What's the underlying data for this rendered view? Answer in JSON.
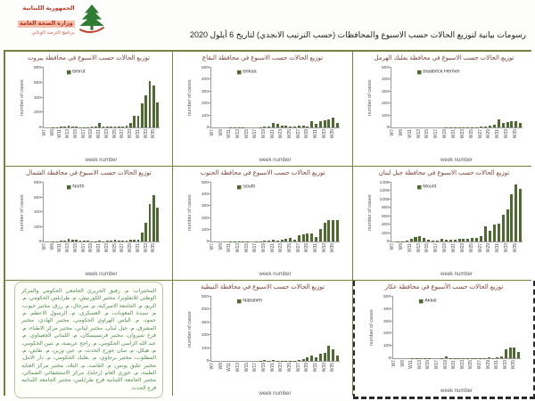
{
  "colors": {
    "bar": "#4d6b2f",
    "grid_border": "#76813e",
    "chart_title": "#7c4236",
    "logo_red": "#c13b2a",
    "note_green": "#4e8a50"
  },
  "header": {
    "logo": {
      "icon": "cedar-tree",
      "line1": "الجمهورية اللبنانية",
      "line2": "وزارة الصحة العامة",
      "line3": "برنامج الترصد الوبائي"
    },
    "title": "رسومات بيانية لتوزيع الحالات حسب الاسبوع  والمحافظات (حسب الترتيب الابجدي) لتاريخ  6 أيلول 2020"
  },
  "axis": {
    "xlabel": "week number",
    "ylabel": "number of cases"
  },
  "labs_note": {
    "text": "المختبرات: م. رفيق الحريري الجامعي الحكومي والمركز الوطني للانفلونزا، مختبر الكورنيش، م. طرابلس الحكومي، م. الريو، م. الجامعة الاميركية، م. سرحال، م. رزق، مختبر حيوب، م. سيدة المعونات، م. العسكري، م. الرسول الاعظم، م. حمود، م. الياس الهراوي الحكومي، مختبر الهادي، مختبر المشرق، م. جبل لبنان، مختبر ايتاني، مختبر مركز الاطباء، م. فرح شيروان، مختبر فرنسيسكان، م. اللبناني الجعيتاوي، م. عبد الله الراسي الحكومي، م. راجح عريضة، م. تنين الحكومي، م. هيكل، م. سان جورج الحدث، م. عين وزين، م. نقاش، م. المطلوب، مختبر برجاوي، م. بعلبك الحكومي، م. دار الامل، مختبر عليق يونس، م. القاصد، م. البلاد، مختبر مركز العناية الطبية، م. خوري العام (زحلة)، مركز الاستشفائي الشمالي، مختبر الجامعة اللبنانية فرع طرابلس، مختبر الجامعة اللبنانية فرع الحدث"
  },
  "chart_data": [
    {
      "type": "bar",
      "title": "توزيع الحالات حسب الاسبوع  في محافظة بيروت",
      "legend": "Beirut",
      "xlabel": "week number",
      "ylabel": "number of cases",
      "ymax": 800,
      "yticks": [
        0,
        200,
        400,
        600,
        800
      ],
      "categories": [
        "W7",
        "W8",
        "W9",
        "W10",
        "W11",
        "W12",
        "W13",
        "W14",
        "W15",
        "W16",
        "W17",
        "W18",
        "W19",
        "W20",
        "W21",
        "W22",
        "W23",
        "W24",
        "W25",
        "W26",
        "W27",
        "W28",
        "W29",
        "W30",
        "W31",
        "W32",
        "W33",
        "W34",
        "W35",
        "W36"
      ],
      "values": [
        0,
        0,
        2,
        3,
        15,
        18,
        20,
        18,
        8,
        4,
        4,
        3,
        14,
        18,
        55,
        14,
        10,
        8,
        14,
        10,
        14,
        20,
        55,
        150,
        160,
        320,
        430,
        620,
        565,
        330
      ]
    },
    {
      "type": "bar",
      "title": "توزيع الحالات حسب الاسبوع  في محافظة البقاع",
      "legend": "Bekaa",
      "xlabel": "week number",
      "ylabel": "number of cases",
      "ymax": 500,
      "yticks": [
        0,
        100,
        200,
        300,
        400,
        500
      ],
      "categories": [
        "W7",
        "W8",
        "W9",
        "W10",
        "W11",
        "W12",
        "W13",
        "W14",
        "W15",
        "W16",
        "W17",
        "W18",
        "W19",
        "W20",
        "W21",
        "W22",
        "W23",
        "W24",
        "W25",
        "W26",
        "W27",
        "W28",
        "W29",
        "W30",
        "W31",
        "W32",
        "W33",
        "W34",
        "W35",
        "W36"
      ],
      "values": [
        0,
        0,
        0,
        0,
        2,
        2,
        3,
        2,
        0,
        0,
        0,
        2,
        10,
        5,
        35,
        30,
        15,
        15,
        5,
        4,
        12,
        12,
        5,
        55,
        30,
        55,
        60,
        65,
        80,
        40
      ]
    },
    {
      "type": "bar",
      "title": "توزيع الحالات حسب الاسبوع  في محافظة بعلبك الهرمل",
      "legend": "Baalbeck Hermel",
      "xlabel": "week number",
      "ylabel": "number of cases",
      "ymax": 500,
      "yticks": [
        0,
        100,
        200,
        300,
        400,
        500
      ],
      "categories": [
        "W7",
        "W8",
        "W9",
        "W10",
        "W11",
        "W12",
        "W13",
        "W14",
        "W15",
        "W16",
        "W17",
        "W18",
        "W19",
        "W20",
        "W21",
        "W22",
        "W23",
        "W24",
        "W25",
        "W26",
        "W27",
        "W28",
        "W29",
        "W30",
        "W31",
        "W32",
        "W33",
        "W34",
        "W35",
        "W36"
      ],
      "values": [
        0,
        0,
        0,
        0,
        0,
        0,
        0,
        0,
        0,
        0,
        0,
        0,
        2,
        2,
        3,
        2,
        2,
        2,
        3,
        3,
        5,
        10,
        15,
        20,
        65,
        35,
        45,
        55,
        55,
        35
      ]
    },
    {
      "type": "bar",
      "title": "توزيع الحالات حسب الاسبوع  في محافظة الشمال",
      "legend": "North",
      "xlabel": "week number",
      "ylabel": "number of cases",
      "ymax": 800,
      "yticks": [
        0,
        200,
        400,
        600,
        800
      ],
      "categories": [
        "W7",
        "W8",
        "W9",
        "W10",
        "W11",
        "W12",
        "W13",
        "W14",
        "W15",
        "W16",
        "W17",
        "W18",
        "W19",
        "W20",
        "W21",
        "W22",
        "W23",
        "W24",
        "W25",
        "W26",
        "W27",
        "W28",
        "W29",
        "W30",
        "W31",
        "W32",
        "W33",
        "W34",
        "W35",
        "W36"
      ],
      "values": [
        0,
        0,
        2,
        3,
        8,
        10,
        40,
        30,
        25,
        15,
        10,
        8,
        5,
        5,
        8,
        5,
        10,
        15,
        25,
        10,
        10,
        15,
        25,
        20,
        30,
        120,
        250,
        510,
        630,
        460
      ]
    },
    {
      "type": "bar",
      "title": "توزيع الحالات حسب الاسبوع  في محافظة الجنوب",
      "legend": "South",
      "xlabel": "week number",
      "ylabel": "number of cases",
      "ymax": 500,
      "yticks": [
        0,
        100,
        200,
        300,
        400,
        500
      ],
      "categories": [
        "W7",
        "W8",
        "W9",
        "W10",
        "W11",
        "W12",
        "W13",
        "W14",
        "W15",
        "W16",
        "W17",
        "W18",
        "W19",
        "W20",
        "W21",
        "W22",
        "W23",
        "W24",
        "W25",
        "W26",
        "W27",
        "W28",
        "W29",
        "W30",
        "W31",
        "W32",
        "W33",
        "W34",
        "W35",
        "W36"
      ],
      "values": [
        0,
        0,
        0,
        0,
        2,
        2,
        3,
        2,
        2,
        0,
        2,
        3,
        5,
        5,
        12,
        8,
        15,
        20,
        30,
        12,
        55,
        60,
        70,
        65,
        40,
        105,
        160,
        185,
        185,
        180
      ]
    },
    {
      "type": "bar",
      "title": "توزيع الحالات حسب الاسبوع  في محافظة جبل لبنان",
      "legend": "Mount",
      "xlabel": "week number",
      "ylabel": "number of cases",
      "ymax": 1400,
      "yticks": [
        0,
        200,
        400,
        600,
        800,
        1000,
        1200,
        1400
      ],
      "categories": [
        "W7",
        "W8",
        "W9",
        "W10",
        "W11",
        "W12",
        "W13",
        "W14",
        "W15",
        "W16",
        "W17",
        "W18",
        "W19",
        "W20",
        "W21",
        "W22",
        "W23",
        "W24",
        "W25",
        "W26",
        "W27",
        "W28",
        "W29",
        "W30",
        "W31",
        "W32",
        "W33",
        "W34",
        "W35",
        "W36"
      ],
      "values": [
        0,
        5,
        10,
        20,
        60,
        110,
        120,
        75,
        50,
        25,
        30,
        60,
        40,
        45,
        50,
        55,
        70,
        60,
        75,
        95,
        120,
        370,
        245,
        400,
        420,
        630,
        770,
        1120,
        1360,
        1250
      ]
    },
    {
      "type": "bar",
      "title": "توزيع الحالات حسب الاسبوع  في محافظة النبطية",
      "legend": "Nabatieh",
      "xlabel": "week number",
      "ylabel": "number of cases",
      "ymax": 500,
      "yticks": [
        0,
        100,
        200,
        300,
        400,
        500
      ],
      "categories": [
        "W7",
        "W8",
        "W9",
        "W10",
        "W11",
        "W12",
        "W13",
        "W14",
        "W15",
        "W16",
        "W17",
        "W18",
        "W19",
        "W20",
        "W21",
        "W22",
        "W23",
        "W24",
        "W25",
        "W26",
        "W27",
        "W28",
        "W29",
        "W30",
        "W31",
        "W32",
        "W33",
        "W34",
        "W35",
        "W36"
      ],
      "values": [
        0,
        0,
        0,
        0,
        0,
        0,
        0,
        0,
        0,
        0,
        0,
        3,
        8,
        3,
        10,
        3,
        3,
        3,
        3,
        3,
        10,
        15,
        25,
        45,
        30,
        55,
        65,
        115,
        90,
        45
      ]
    },
    {
      "type": "bar",
      "title": "توزيع الحالات حسب  الأسبوع في محافظة عكار",
      "legend": "Akkar",
      "xlabel": "week number",
      "ylabel": "number of cases",
      "ymax": 500,
      "yticks": [
        0,
        100,
        200,
        300,
        400,
        500
      ],
      "categories": [
        "W7",
        "W8",
        "W9",
        "W10",
        "W11",
        "W12",
        "W13",
        "W14",
        "W15",
        "W16",
        "W17",
        "W18",
        "W19",
        "W20",
        "W21",
        "W22",
        "W23",
        "W24",
        "W25",
        "W26",
        "W27",
        "W28",
        "W29",
        "W30",
        "W31",
        "W32",
        "W33",
        "W34",
        "W35",
        "W36"
      ],
      "values": [
        0,
        0,
        0,
        0,
        2,
        2,
        3,
        2,
        2,
        0,
        0,
        2,
        18,
        2,
        3,
        2,
        2,
        2,
        3,
        2,
        3,
        3,
        4,
        3,
        8,
        12,
        75,
        85,
        90,
        50
      ]
    }
  ]
}
